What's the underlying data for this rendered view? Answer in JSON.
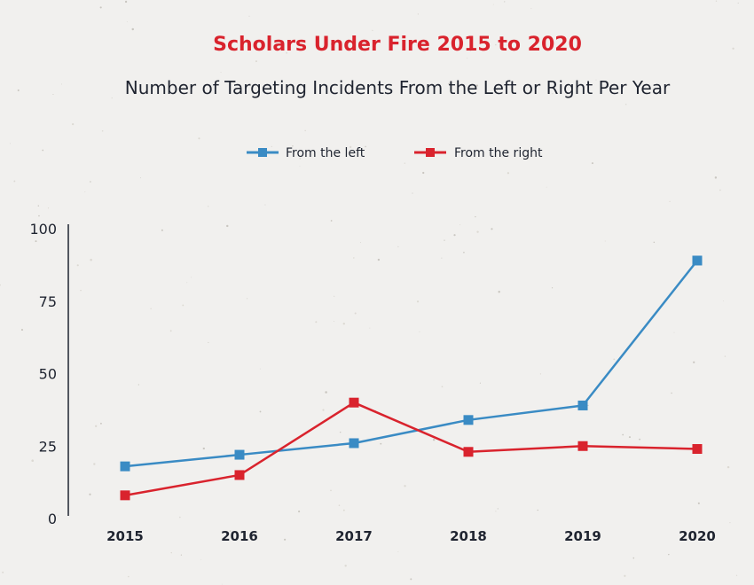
{
  "chart_data": {
    "type": "line",
    "title": "Scholars Under Fire 2015 to 2020",
    "subtitle": "Number of Targeting Incidents  From the Left or Right Per Year",
    "xlabel": "",
    "ylabel": "",
    "categories": [
      "2015",
      "2016",
      "2017",
      "2018",
      "2019",
      "2020"
    ],
    "ylim": [
      0,
      100
    ],
    "yticks": [
      "0",
      "25",
      "50",
      "75",
      "100"
    ],
    "grid": false,
    "legend_position": "top-center",
    "series": [
      {
        "name": "From the left",
        "color": "#3a8bc4",
        "values": [
          18,
          22,
          26,
          34,
          39,
          89
        ]
      },
      {
        "name": "From the right",
        "color": "#d9232d",
        "values": [
          8,
          15,
          40,
          23,
          25,
          24
        ]
      }
    ],
    "title_color": "#d9232d"
  }
}
